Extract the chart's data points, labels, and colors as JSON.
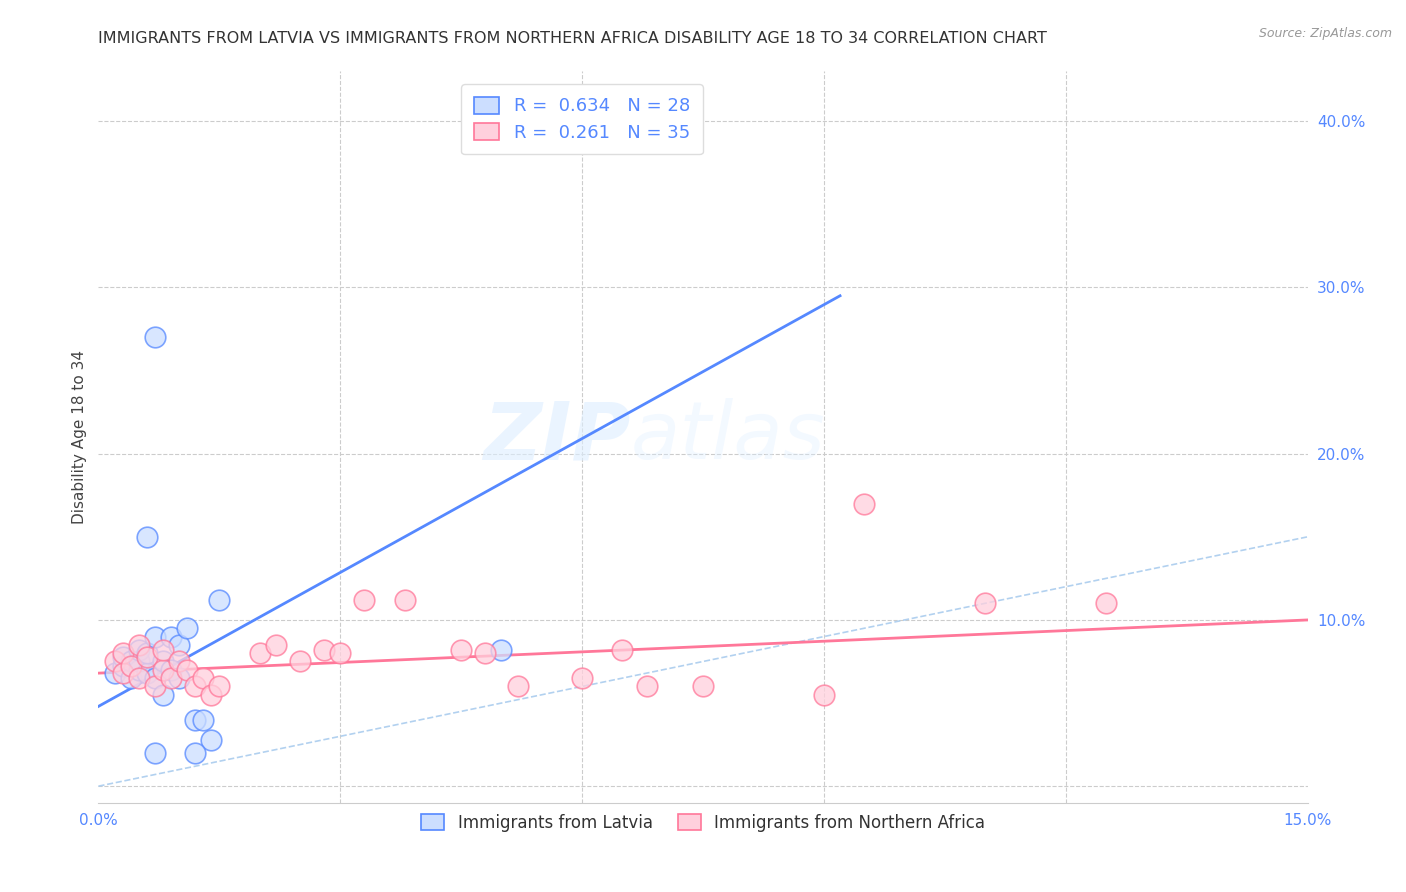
{
  "title": "IMMIGRANTS FROM LATVIA VS IMMIGRANTS FROM NORTHERN AFRICA DISABILITY AGE 18 TO 34 CORRELATION CHART",
  "source": "Source: ZipAtlas.com",
  "ylabel": "Disability Age 18 to 34",
  "xlim": [
    0.0,
    0.15
  ],
  "ylim": [
    -0.01,
    0.43
  ],
  "yticks_right": [
    0.0,
    0.1,
    0.2,
    0.3,
    0.4
  ],
  "ytick_labels_right": [
    "",
    "10.0%",
    "20.0%",
    "30.0%",
    "40.0%"
  ],
  "watermark_zip": "ZIP",
  "watermark_atlas": "atlas",
  "blue_scatter_x": [
    0.002,
    0.003,
    0.003,
    0.004,
    0.004,
    0.005,
    0.005,
    0.005,
    0.006,
    0.006,
    0.007,
    0.007,
    0.008,
    0.008,
    0.009,
    0.009,
    0.01,
    0.01,
    0.011,
    0.012,
    0.013,
    0.014,
    0.015,
    0.006,
    0.007,
    0.05,
    0.007,
    0.012
  ],
  "blue_scatter_y": [
    0.068,
    0.072,
    0.078,
    0.065,
    0.075,
    0.07,
    0.075,
    0.082,
    0.068,
    0.08,
    0.065,
    0.09,
    0.075,
    0.055,
    0.07,
    0.09,
    0.065,
    0.085,
    0.095,
    0.04,
    0.04,
    0.028,
    0.112,
    0.15,
    0.27,
    0.082,
    0.02,
    0.02
  ],
  "pink_scatter_x": [
    0.002,
    0.003,
    0.003,
    0.004,
    0.005,
    0.005,
    0.006,
    0.007,
    0.008,
    0.008,
    0.009,
    0.01,
    0.011,
    0.012,
    0.013,
    0.014,
    0.015,
    0.02,
    0.022,
    0.025,
    0.028,
    0.03,
    0.033,
    0.038,
    0.045,
    0.048,
    0.052,
    0.06,
    0.065,
    0.068,
    0.075,
    0.09,
    0.095,
    0.11,
    0.125
  ],
  "pink_scatter_y": [
    0.075,
    0.068,
    0.08,
    0.072,
    0.065,
    0.085,
    0.078,
    0.06,
    0.07,
    0.082,
    0.065,
    0.075,
    0.07,
    0.06,
    0.065,
    0.055,
    0.06,
    0.08,
    0.085,
    0.075,
    0.082,
    0.08,
    0.112,
    0.112,
    0.082,
    0.08,
    0.06,
    0.065,
    0.082,
    0.06,
    0.06,
    0.055,
    0.17,
    0.11,
    0.11
  ],
  "blue_line_x": [
    0.0,
    0.092
  ],
  "blue_line_y": [
    0.048,
    0.295
  ],
  "pink_line_x": [
    0.0,
    0.15
  ],
  "pink_line_y": [
    0.068,
    0.1
  ],
  "diag_line_x": [
    0.0,
    0.15
  ],
  "diag_line_y": [
    0.0,
    0.15
  ],
  "background_color": "#ffffff",
  "grid_color": "#cccccc",
  "blue_color": "#5588ff",
  "pink_color": "#ff7799",
  "diag_color": "#aaccee",
  "title_fontsize": 11.5,
  "axis_label_fontsize": 11,
  "tick_fontsize": 11
}
